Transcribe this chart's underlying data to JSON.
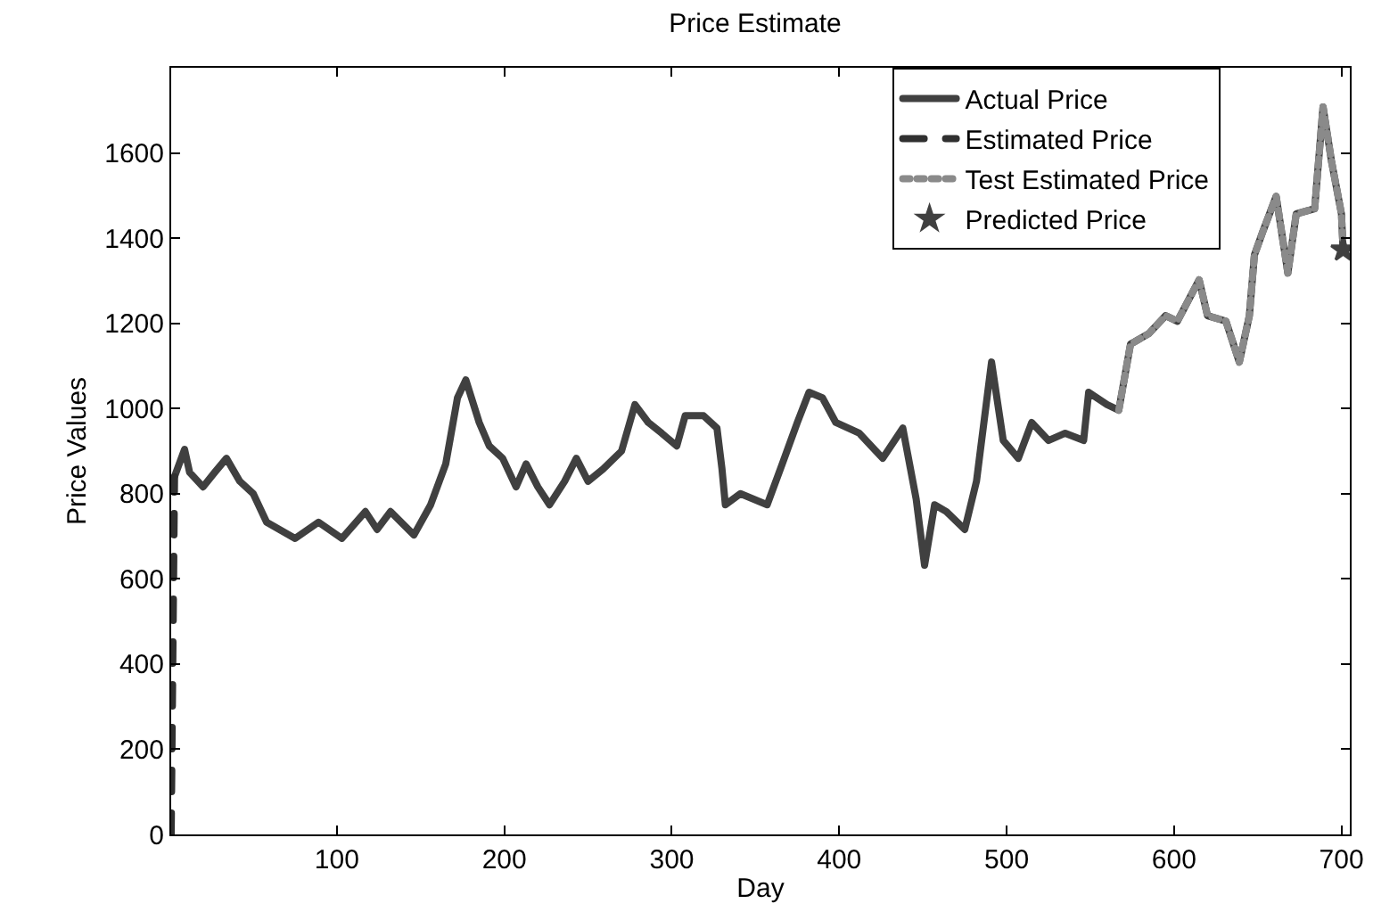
{
  "chart_data": {
    "type": "line",
    "title": "Price Estimate",
    "xlabel": "Day",
    "ylabel": "Price Values",
    "xlim": [
      1,
      705
    ],
    "xticks": [
      100,
      200,
      300,
      400,
      500,
      600,
      700
    ],
    "ylim": [
      0,
      1800
    ],
    "yticks": [
      0,
      200,
      400,
      600,
      800,
      1000,
      1200,
      1400,
      1600
    ],
    "grid": false,
    "legend": "top right",
    "series": [
      {
        "name": "Actual Price",
        "color": "#404040",
        "line_style": "solid",
        "marker": "none",
        "x": [
          3,
          9,
          12,
          20,
          27,
          34,
          42,
          50,
          58,
          75,
          89,
          103,
          117,
          124,
          132,
          146,
          156,
          165,
          172,
          177,
          185,
          191,
          199,
          207,
          213,
          220,
          227,
          236,
          243,
          250,
          259,
          270,
          278,
          286,
          294,
          303,
          308,
          319,
          327,
          330,
          332,
          341,
          357,
          366,
          375,
          382,
          390,
          398,
          412,
          426,
          438,
          446,
          451,
          457,
          464,
          475,
          482,
          491,
          498,
          507,
          515,
          525,
          535,
          546,
          549,
          560,
          567,
          574,
          585,
          595,
          602,
          615,
          620,
          631,
          639,
          645,
          648,
          653,
          661,
          668,
          673,
          684,
          689,
          694,
          700,
          701
        ],
        "values": [
          840,
          904,
          850,
          816,
          850,
          883,
          829,
          800,
          733,
          695,
          733,
          695,
          758,
          716,
          758,
          703,
          774,
          870,
          1025,
          1067,
          967,
          912,
          883,
          816,
          870,
          816,
          774,
          829,
          883,
          829,
          858,
          900,
          1009,
          967,
          942,
          912,
          983,
          983,
          954,
          858,
          774,
          800,
          774,
          870,
          967,
          1038,
          1025,
          967,
          942,
          883,
          954,
          787,
          632,
          774,
          758,
          716,
          829,
          1109,
          925,
          883,
          967,
          925,
          942,
          925,
          1038,
          1009,
          996,
          1151,
          1176,
          1218,
          1205,
          1302,
          1218,
          1205,
          1109,
          1218,
          1360,
          1415,
          1498,
          1318,
          1457,
          1469,
          1708,
          1582,
          1457,
          1373
        ]
      },
      {
        "name": "Estimated Price",
        "color": "#303030",
        "line_style": "dashed",
        "marker": "none",
        "x": [
          1,
          2,
          3
        ],
        "values": [
          0,
          420,
          840
        ]
      },
      {
        "name": "Test Estimated Price",
        "color": "#8a8a8a",
        "line_style": "dotted",
        "marker": "none",
        "x": [
          567,
          574,
          585,
          595,
          602,
          615,
          620,
          631,
          639,
          645,
          648,
          653,
          661,
          668,
          673,
          684,
          689,
          694,
          700,
          701
        ],
        "values": [
          996,
          1151,
          1176,
          1218,
          1205,
          1302,
          1218,
          1205,
          1109,
          1218,
          1360,
          1415,
          1498,
          1318,
          1457,
          1469,
          1708,
          1582,
          1457,
          1373
        ]
      },
      {
        "name": "Predicted Price",
        "type": "scatter",
        "color": "#404040",
        "marker": "star",
        "x": [
          701
        ],
        "values": [
          1373
        ]
      }
    ]
  }
}
